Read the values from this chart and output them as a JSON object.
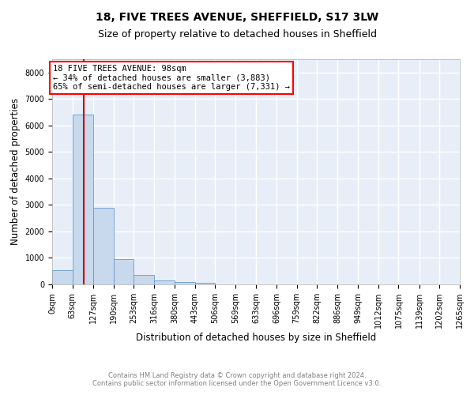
{
  "title": "18, FIVE TREES AVENUE, SHEFFIELD, S17 3LW",
  "subtitle": "Size of property relative to detached houses in Sheffield",
  "xlabel": "Distribution of detached houses by size in Sheffield",
  "ylabel": "Number of detached properties",
  "footer_line1": "Contains HM Land Registry data © Crown copyright and database right 2024.",
  "footer_line2": "Contains public sector information licensed under the Open Government Licence v3.0.",
  "bin_edges": [
    0,
    63,
    127,
    190,
    253,
    316,
    380,
    443,
    506,
    569,
    633,
    696,
    759,
    822,
    886,
    949,
    1012,
    1075,
    1139,
    1202,
    1265
  ],
  "bar_heights": [
    550,
    6400,
    2900,
    950,
    350,
    150,
    100,
    60,
    10,
    5,
    2,
    2,
    1,
    1,
    0,
    0,
    0,
    0,
    0,
    0
  ],
  "bar_color": "#c8d8ed",
  "bar_edge_color": "#6699cc",
  "ylim_max": 8500,
  "yticks": [
    0,
    1000,
    2000,
    3000,
    4000,
    5000,
    6000,
    7000,
    8000
  ],
  "property_sqm": 98,
  "vline_color": "#cc0000",
  "annotation_line1": "18 FIVE TREES AVENUE: 98sqm",
  "annotation_line2": "← 34% of detached houses are smaller (3,883)",
  "annotation_line3": "65% of semi-detached houses are larger (7,331) →",
  "background_color": "#e8eef8",
  "grid_color": "white",
  "title_fontsize": 10,
  "subtitle_fontsize": 9,
  "xlabel_fontsize": 8.5,
  "ylabel_fontsize": 8.5,
  "tick_fontsize": 7,
  "annotation_fontsize": 7.5,
  "footer_fontsize": 6.0
}
